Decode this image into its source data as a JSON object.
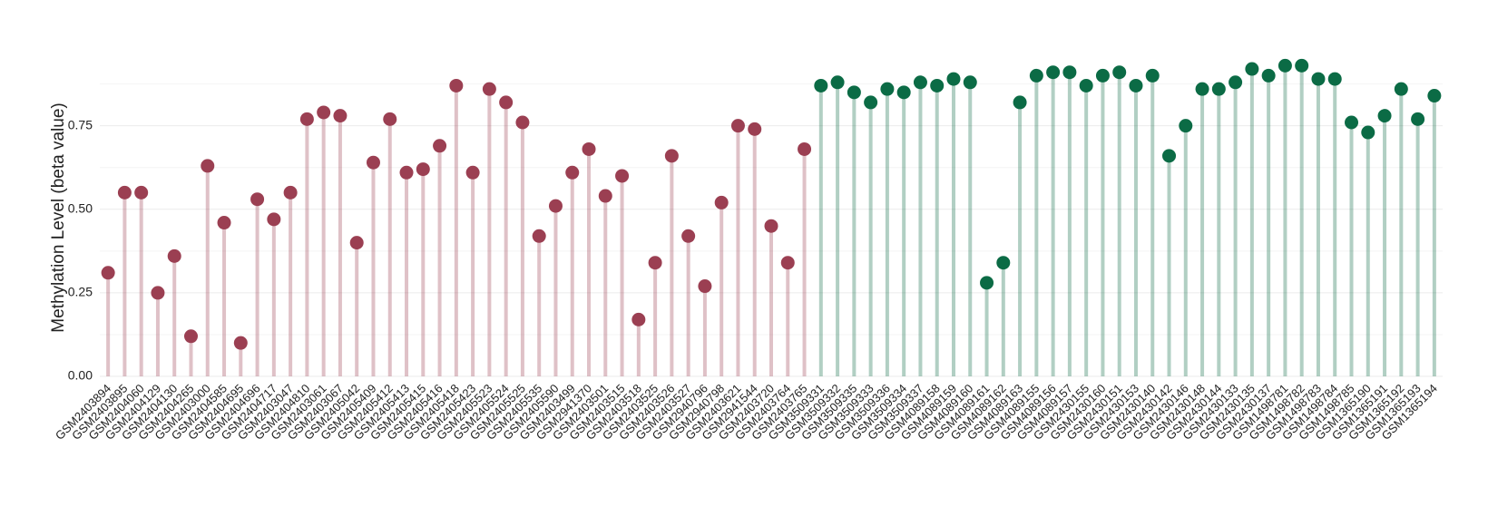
{
  "chart_data": {
    "type": "lollipop",
    "y_label": "Methylation Level (beta value)",
    "categories": [
      "GSM2403894",
      "GSM2403895",
      "GSM2404060",
      "GSM2404129",
      "GSM2404130",
      "GSM2404265",
      "GSM2403000",
      "GSM2404585",
      "GSM2404695",
      "GSM2404696",
      "GSM2404717",
      "GSM2403047",
      "GSM2404810",
      "GSM2403061",
      "GSM2403067",
      "GSM2405042",
      "GSM2405409",
      "GSM2405412",
      "GSM2405413",
      "GSM2405415",
      "GSM2405416",
      "GSM2405418",
      "GSM2405423",
      "GSM2405523",
      "GSM2405524",
      "GSM2405525",
      "GSM2405535",
      "GSM2405590",
      "GSM2403499",
      "GSM2941370",
      "GSM2403501",
      "GSM2403515",
      "GSM2403518",
      "GSM2403525",
      "GSM2403526",
      "GSM2403527",
      "GSM2940796",
      "GSM2940798",
      "GSM2403621",
      "GSM2941544",
      "GSM2403720",
      "GSM2403764",
      "GSM2403765",
      "GSM3509331",
      "GSM3509332",
      "GSM3509335",
      "GSM3509333",
      "GSM3509336",
      "GSM3509334",
      "GSM3509337",
      "GSM4089158",
      "GSM4089159",
      "GSM4089160",
      "GSM4089161",
      "GSM4089162",
      "GSM4089163",
      "GSM4089155",
      "GSM4089156",
      "GSM4089157",
      "GSM2430155",
      "GSM2430160",
      "GSM2430151",
      "GSM2430153",
      "GSM2430140",
      "GSM2430142",
      "GSM2430146",
      "GSM2430148",
      "GSM2430144",
      "GSM2430133",
      "GSM2430135",
      "GSM2430137",
      "GSM1498781",
      "GSM1498782",
      "GSM1498783",
      "GSM1498784",
      "GSM1498785",
      "GSM1365190",
      "GSM1365191",
      "GSM1365192",
      "GSM1365193",
      "GSM1365194"
    ],
    "values": [
      0.31,
      0.55,
      0.55,
      0.25,
      0.36,
      0.12,
      0.63,
      0.46,
      0.1,
      0.53,
      0.47,
      0.55,
      0.77,
      0.79,
      0.78,
      0.4,
      0.64,
      0.77,
      0.61,
      0.62,
      0.69,
      0.87,
      0.61,
      0.86,
      0.82,
      0.76,
      0.42,
      0.51,
      0.61,
      0.68,
      0.54,
      0.6,
      0.17,
      0.34,
      0.66,
      0.42,
      0.27,
      0.52,
      0.75,
      0.74,
      0.45,
      0.34,
      0.68,
      0.87,
      0.88,
      0.85,
      0.82,
      0.86,
      0.85,
      0.88,
      0.87,
      0.89,
      0.88,
      0.28,
      0.34,
      0.82,
      0.9,
      0.91,
      0.91,
      0.87,
      0.9,
      0.91,
      0.87,
      0.9,
      0.66,
      0.75,
      0.86,
      0.86,
      0.88,
      0.92,
      0.9,
      0.93,
      0.93,
      0.89,
      0.89,
      0.76,
      0.73,
      0.78,
      0.86,
      0.77,
      0.84
    ],
    "point_colors": [
      "#9b3f52",
      "#9b3f52",
      "#9b3f52",
      "#9b3f52",
      "#9b3f52",
      "#9b3f52",
      "#9b3f52",
      "#9b3f52",
      "#9b3f52",
      "#9b3f52",
      "#9b3f52",
      "#9b3f52",
      "#9b3f52",
      "#9b3f52",
      "#9b3f52",
      "#9b3f52",
      "#9b3f52",
      "#9b3f52",
      "#9b3f52",
      "#9b3f52",
      "#9b3f52",
      "#9b3f52",
      "#9b3f52",
      "#9b3f52",
      "#9b3f52",
      "#9b3f52",
      "#9b3f52",
      "#9b3f52",
      "#9b3f52",
      "#9b3f52",
      "#9b3f52",
      "#9b3f52",
      "#9b3f52",
      "#9b3f52",
      "#9b3f52",
      "#9b3f52",
      "#9b3f52",
      "#9b3f52",
      "#9b3f52",
      "#9b3f52",
      "#9b3f52",
      "#9b3f52",
      "#9b3f52",
      "#0b6b45",
      "#0b6b45",
      "#0b6b45",
      "#0b6b45",
      "#0b6b45",
      "#0b6b45",
      "#0b6b45",
      "#0b6b45",
      "#0b6b45",
      "#0b6b45",
      "#0b6b45",
      "#0b6b45",
      "#0b6b45",
      "#0b6b45",
      "#0b6b45",
      "#0b6b45",
      "#0b6b45",
      "#0b6b45",
      "#0b6b45",
      "#0b6b45",
      "#0b6b45",
      "#0b6b45",
      "#0b6b45",
      "#0b6b45",
      "#0b6b45",
      "#0b6b45",
      "#0b6b45",
      "#0b6b45",
      "#0b6b45",
      "#0b6b45",
      "#0b6b45",
      "#0b6b45",
      "#0b6b45",
      "#0b6b45",
      "#0b6b45",
      "#0b6b45",
      "#0b6b45",
      "#0b6b45"
    ],
    "ylim": [
      0,
      0.95
    ],
    "yticks": [
      {
        "value": 0,
        "label": "0.00"
      },
      0.25,
      {
        "value": 0.5,
        "label": "0.50"
      },
      0.75
    ],
    "minor_yticks": [
      0.125,
      0.375,
      0.625,
      0.875
    ],
    "grid": true
  }
}
